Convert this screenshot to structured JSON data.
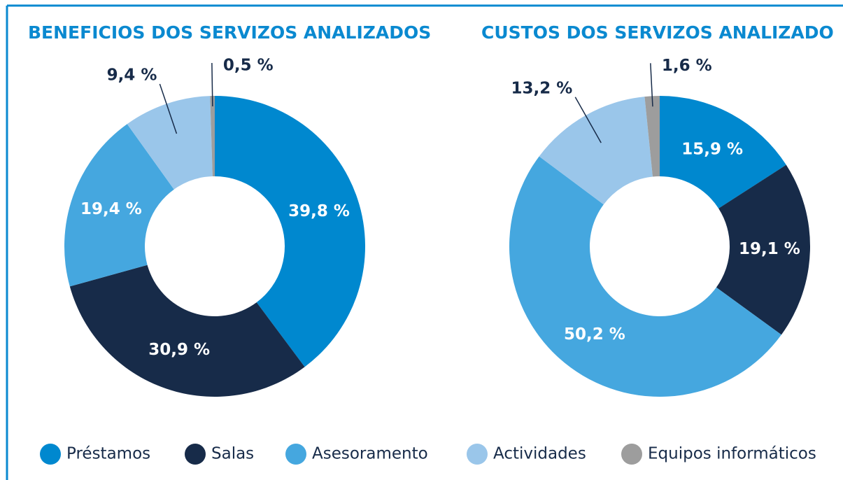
{
  "chart_data": [
    {
      "type": "donut",
      "title": "BENEFICIOS DOS SERVIZOS ANALIZADOS",
      "categories": [
        "Préstamos",
        "Salas",
        "Asesoramento",
        "Actividades",
        "Equipos informáticos"
      ],
      "values": [
        39.8,
        30.9,
        19.4,
        9.4,
        0.5
      ],
      "value_labels": [
        "39,8 %",
        "30,9 %",
        "19,4 %",
        "9,4 %",
        "0,5 %"
      ],
      "colors": [
        "#0088cf",
        "#172b49",
        "#45a7df",
        "#9ac6ea",
        "#9d9d9d"
      ]
    },
    {
      "type": "donut",
      "title": "CUSTOS DOS SERVIZOS ANALIZADO",
      "categories": [
        "Préstamos",
        "Salas",
        "Asesoramento",
        "Actividades",
        "Equipos informáticos"
      ],
      "values": [
        15.9,
        19.1,
        50.2,
        13.2,
        1.6
      ],
      "value_labels": [
        "15,9 %",
        "19,1 %",
        "50,2 %",
        "13,2 %",
        "1,6 %"
      ],
      "colors": [
        "#0088cf",
        "#172b49",
        "#45a7df",
        "#9ac6ea",
        "#9d9d9d"
      ]
    }
  ]
}
